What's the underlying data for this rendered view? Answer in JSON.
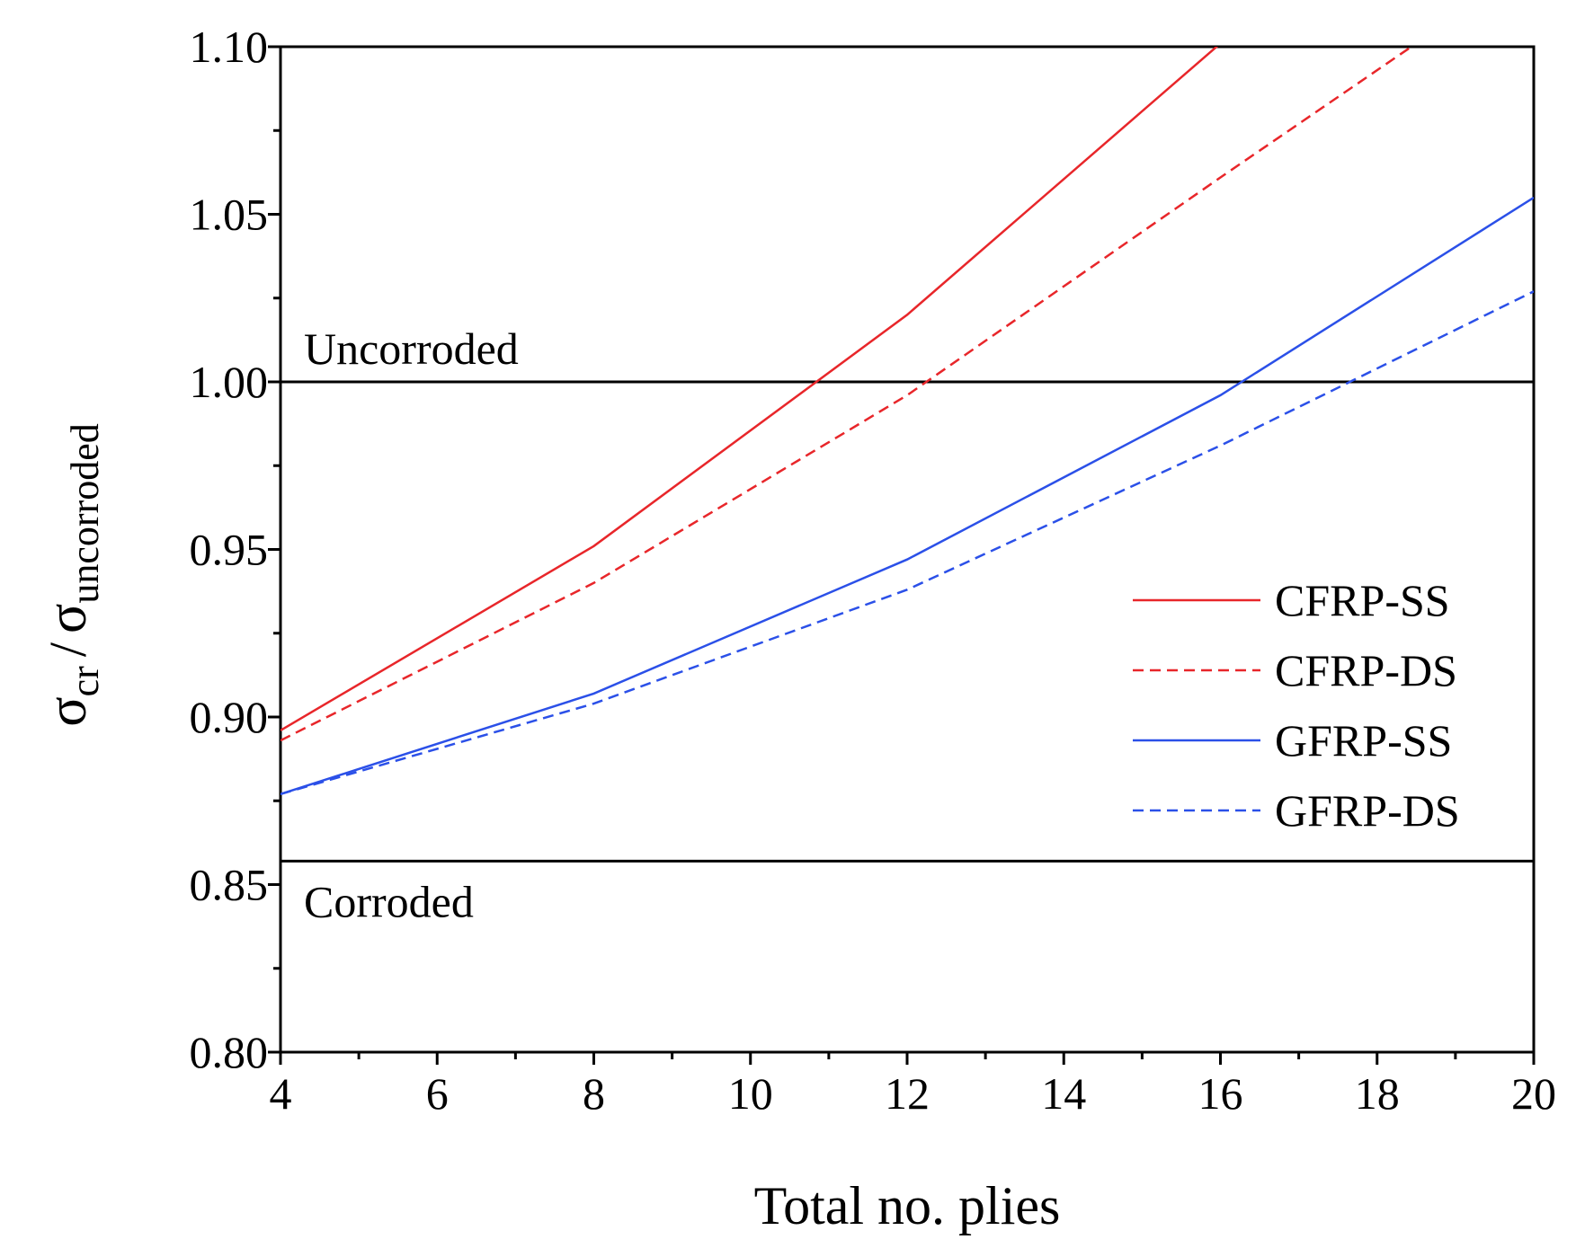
{
  "chart_data": {
    "type": "line",
    "xlabel": "Total no. plies",
    "ylabel": {
      "sigma": "σ",
      "num_sub": "cr",
      "slash": "/",
      "den_sub": "uncorroded"
    },
    "xlim": [
      4,
      20
    ],
    "ylim": [
      0.8,
      1.1
    ],
    "x_ticks": [
      4,
      6,
      8,
      10,
      12,
      14,
      16,
      18,
      20
    ],
    "y_ticks": [
      0.8,
      0.85,
      0.9,
      0.95,
      1.0,
      1.05,
      1.1
    ],
    "x_tick_labels": [
      "4",
      "6",
      "8",
      "10",
      "12",
      "14",
      "16",
      "18",
      "20"
    ],
    "y_tick_labels": [
      "0.80",
      "0.85",
      "0.90",
      "0.95",
      "1.00",
      "1.05",
      "1.10"
    ],
    "reference_lines": [
      {
        "label": "Uncorroded",
        "y": 1.0
      },
      {
        "label": "Corroded",
        "y": 0.857
      }
    ],
    "series": [
      {
        "name": "CFRP-SS",
        "color": "#e8262a",
        "dashed": false,
        "x": [
          4,
          8,
          12,
          16
        ],
        "y": [
          0.896,
          0.951,
          1.02,
          1.101
        ]
      },
      {
        "name": "CFRP-DS",
        "color": "#e8262a",
        "dashed": true,
        "x": [
          4,
          8,
          12,
          16,
          18.5
        ],
        "y": [
          0.893,
          0.94,
          0.996,
          1.061,
          1.101
        ]
      },
      {
        "name": "GFRP-SS",
        "color": "#2b50e8",
        "dashed": false,
        "x": [
          4,
          8,
          12,
          16,
          20
        ],
        "y": [
          0.877,
          0.907,
          0.947,
          0.996,
          1.055
        ]
      },
      {
        "name": "GFRP-DS",
        "color": "#2b50e8",
        "dashed": true,
        "x": [
          4,
          8,
          12,
          16,
          20
        ],
        "y": [
          0.877,
          0.904,
          0.938,
          0.981,
          1.027
        ]
      }
    ],
    "legend_position": "right"
  }
}
